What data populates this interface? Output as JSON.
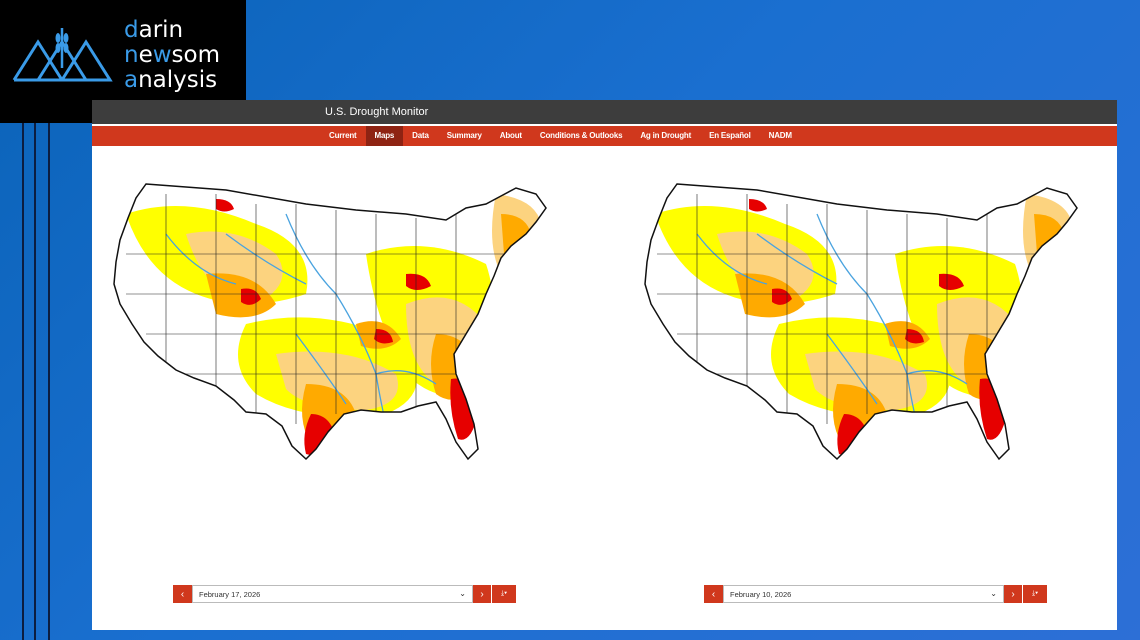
{
  "logo": {
    "line1_hl": "d",
    "line1_rest": "arin",
    "line2_hl": "n",
    "line2_mid": "e",
    "line2_hl2": "w",
    "line2_rest": "som",
    "line3_hl": "a",
    "line3_rest": "nalysis",
    "icon": "wheat-triangles-icon"
  },
  "app": {
    "title": "U.S. Drought Monitor",
    "nav": [
      "Current",
      "Maps",
      "Data",
      "Summary",
      "About",
      "Conditions & Outlooks",
      "Ag in Drought",
      "En Español",
      "NADM"
    ],
    "active_nav": "Maps"
  },
  "maps": [
    {
      "date": "February 17, 2026",
      "prev_icon": "chevron-left-icon",
      "next_icon": "chevron-right-icon",
      "download_icon": "download-icon"
    },
    {
      "date": "February 10, 2026",
      "prev_icon": "chevron-left-icon",
      "next_icon": "chevron-right-icon",
      "download_icon": "download-icon"
    }
  ],
  "colors": {
    "nav_bg": "#d0381d",
    "title_bg": "#3d3d3d",
    "D0": "#ffff00",
    "D1": "#fcd37f",
    "D2": "#ffaa00",
    "D3": "#e60000",
    "D4": "#730000",
    "water": "#4aa3df"
  }
}
